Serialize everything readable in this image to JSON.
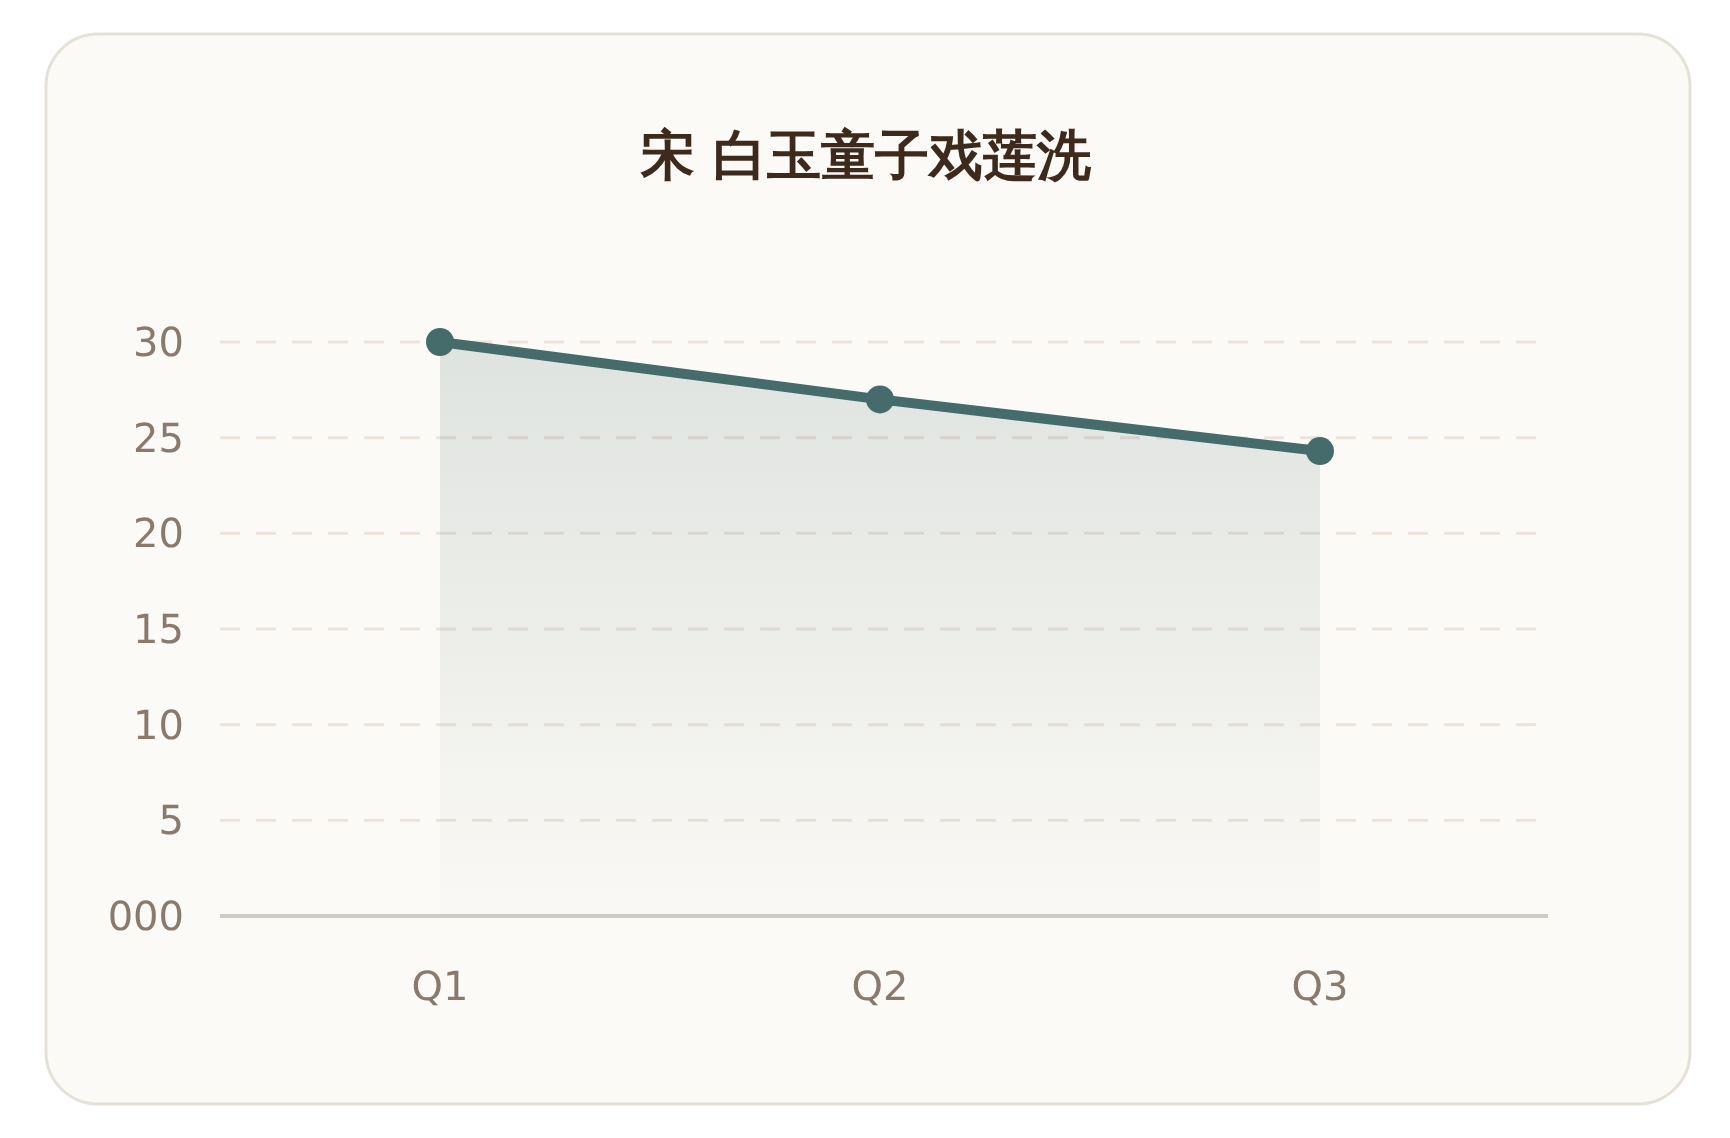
{
  "chart_data": {
    "type": "area",
    "title": "宋 白玉童子戏莲洗",
    "categories": [
      "Q1",
      "Q2",
      "Q3"
    ],
    "values": [
      30,
      27,
      24.3
    ],
    "color": "#456b6b",
    "ylim": [
      0,
      30
    ],
    "yticks": [
      {
        "value": 0,
        "label": "000"
      },
      5,
      10,
      15,
      20,
      25,
      30
    ],
    "grid": "y",
    "marker": "circle",
    "line_style": "solid"
  }
}
